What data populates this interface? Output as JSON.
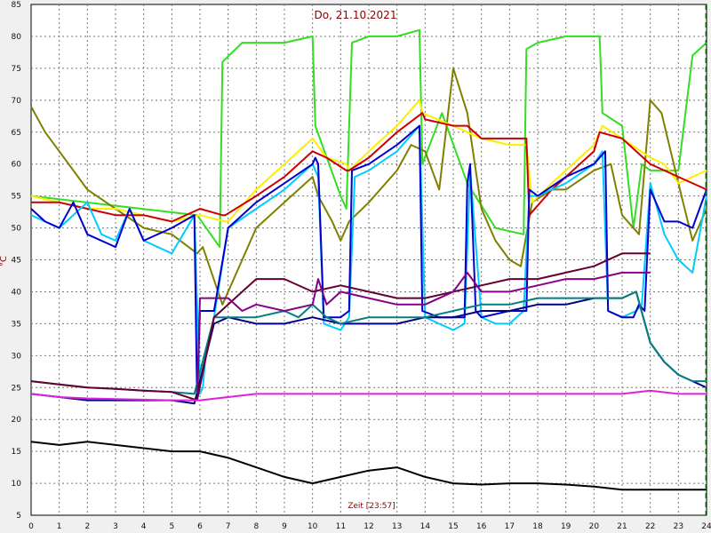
{
  "chart_data": {
    "type": "line",
    "title": "Do, 21.10.2021",
    "xlabel": "Zeit [23:57]",
    "ylabel": "°C",
    "xlim": [
      0,
      24
    ],
    "ylim": [
      5,
      85
    ],
    "x_ticks": [
      0,
      1,
      2,
      3,
      4,
      5,
      6,
      7,
      8,
      9,
      10,
      11,
      12,
      13,
      14,
      15,
      16,
      17,
      18,
      19,
      20,
      21,
      22,
      23,
      24
    ],
    "y_ticks": [
      5,
      10,
      15,
      20,
      25,
      30,
      35,
      40,
      45,
      50,
      55,
      60,
      65,
      70,
      75,
      80,
      85
    ],
    "grid": true,
    "series": [
      {
        "color": "#33dd22",
        "x": [
          0,
          5.9,
          6.7,
          6.8,
          7.5,
          9.0,
          10.0,
          10.1,
          11.0,
          11.2,
          11.4,
          12.0,
          13.0,
          13.8,
          13.9,
          14.6,
          15.5,
          16.5,
          17.5,
          17.6,
          18.0,
          19.0,
          20.2,
          20.3,
          21.0,
          21.4,
          21.7,
          22.0,
          23.0,
          23.5,
          24.0
        ],
        "values": [
          55,
          52,
          47,
          76,
          79,
          79,
          80,
          66,
          55,
          53,
          79,
          80,
          80,
          81,
          60,
          68,
          57,
          50,
          49,
          78,
          79,
          80,
          80,
          68,
          66,
          50,
          60,
          59,
          59,
          77,
          79
        ]
      },
      {
        "color": "#808000",
        "x": [
          0,
          0.5,
          1,
          2,
          3,
          4,
          5,
          5.9,
          6.1,
          6.8,
          7.0,
          8.0,
          9.0,
          10.0,
          10.2,
          10.7,
          11.0,
          11.3,
          12.0,
          13.0,
          13.5,
          14.0,
          14.5,
          15.0,
          15.5,
          16.0,
          16.5,
          17.0,
          17.4,
          17.8,
          18.5,
          19.0,
          20.0,
          20.6,
          21.0,
          21.6,
          22.0,
          22.4,
          23.0,
          23.5,
          24.0
        ],
        "values": [
          69,
          65,
          62,
          56,
          53,
          50,
          49,
          46,
          47,
          38,
          40,
          50,
          54,
          58,
          55,
          51,
          48,
          51,
          54,
          59,
          63,
          62,
          56,
          75,
          68,
          53,
          48,
          45,
          44,
          54,
          56,
          56,
          59,
          60,
          52,
          49,
          70,
          68,
          57,
          48,
          53
        ]
      },
      {
        "color": "#ffee00",
        "x": [
          0,
          1,
          2,
          3,
          4,
          5,
          6,
          6.9,
          7.0,
          8,
          9,
          10,
          10.5,
          11.2,
          11.3,
          12,
          13,
          13.8,
          13.9,
          15,
          15.5,
          16,
          17,
          17.6,
          17.8,
          18.5,
          19,
          20,
          20.3,
          21,
          22,
          22.5,
          23,
          24
        ],
        "values": [
          55,
          54,
          53,
          53,
          52,
          51,
          52,
          51,
          51,
          56,
          60,
          64,
          61,
          60,
          59,
          62,
          66,
          70,
          68,
          66,
          65,
          64,
          63,
          63,
          54,
          57,
          59,
          63,
          66,
          64,
          61,
          60,
          57,
          59
        ]
      },
      {
        "color": "#cc0000",
        "x": [
          0,
          1,
          2,
          3,
          4,
          5,
          6,
          6.8,
          6.9,
          8,
          9,
          10,
          10.5,
          11.2,
          11.3,
          12,
          13,
          13.9,
          14,
          15,
          15.5,
          16,
          17,
          17.6,
          17.7,
          18.5,
          19,
          20,
          20.2,
          21,
          22,
          22.5,
          23,
          24
        ],
        "values": [
          54,
          54,
          53,
          52,
          52,
          51,
          53,
          52,
          52,
          55,
          58,
          62,
          61,
          59,
          59,
          61,
          65,
          68,
          67,
          66,
          66,
          64,
          64,
          64,
          52,
          56,
          58,
          62,
          65,
          64,
          60,
          59,
          58,
          56
        ]
      },
      {
        "color": "#00ccff",
        "x": [
          0,
          0.5,
          1,
          2,
          2.5,
          3,
          3.5,
          4,
          5,
          5.8,
          6.0,
          6.1,
          6.2,
          6.5,
          7,
          8,
          9,
          10,
          10.2,
          10.4,
          11.0,
          11.3,
          11.5,
          12,
          13,
          13.8,
          14.0,
          14.5,
          15.0,
          15.4,
          15.6,
          16,
          16.5,
          17,
          17.5,
          17.7,
          18,
          18.5,
          19,
          20,
          20.3,
          20.5,
          21,
          21.5,
          21.7,
          22,
          22.5,
          23,
          23.5,
          24
        ],
        "values": [
          52,
          51,
          50,
          54,
          49,
          48,
          53,
          48,
          46,
          52,
          24,
          25,
          30,
          36,
          50,
          53,
          56,
          60,
          58,
          35,
          34,
          36,
          58,
          59,
          62,
          66,
          36,
          35,
          34,
          35,
          59,
          36,
          35,
          35,
          37,
          55,
          55,
          56,
          57,
          60,
          62,
          37,
          36,
          37,
          38,
          57,
          49,
          45,
          43,
          55
        ]
      },
      {
        "color": "#0000cc",
        "x": [
          0,
          0.5,
          1,
          1.5,
          2,
          3,
          3.5,
          4,
          5,
          5.8,
          5.9,
          6.0,
          6.5,
          7,
          8,
          9,
          10,
          10.1,
          10.2,
          10.4,
          11.0,
          11.3,
          11.4,
          12,
          13,
          13.8,
          13.9,
          14.5,
          15.4,
          15.5,
          15.6,
          15.8,
          16,
          17,
          17.6,
          17.7,
          18,
          19,
          20,
          20.4,
          20.5,
          21,
          21.4,
          21.6,
          21.8,
          22,
          22.3,
          22.5,
          23,
          23.5,
          24
        ],
        "values": [
          53,
          51,
          50,
          54,
          49,
          47,
          53,
          48,
          50,
          52,
          23,
          37,
          37,
          50,
          54,
          57,
          60,
          61,
          60,
          36,
          36,
          37,
          59,
          60,
          63,
          66,
          37,
          36,
          36,
          57,
          60,
          37,
          36,
          37,
          37,
          56,
          55,
          58,
          60,
          62,
          37,
          36,
          36,
          38,
          37,
          56,
          53,
          51,
          51,
          50,
          56
        ]
      },
      {
        "color": "#000080",
        "x": [
          0,
          1,
          2,
          3,
          4,
          5,
          5.8,
          6.5,
          7,
          8,
          9,
          10,
          11,
          12,
          13,
          14,
          15,
          16,
          17,
          18,
          19,
          20,
          21,
          21.5,
          22,
          22.5,
          23,
          23.5,
          24
        ],
        "values": [
          24,
          23.5,
          23,
          23,
          23,
          23,
          22.5,
          35,
          36,
          35,
          35,
          36,
          35,
          35,
          35,
          36,
          36,
          37,
          37,
          38,
          38,
          39,
          39,
          40,
          32,
          29,
          27,
          26,
          25
        ]
      },
      {
        "color": "#008080",
        "x": [
          0,
          1,
          2,
          3,
          4,
          5,
          5.8,
          6.5,
          7,
          8,
          9,
          9.5,
          10,
          10.5,
          11,
          12,
          13,
          14,
          15,
          16,
          17,
          18,
          19,
          20,
          21,
          21.5,
          22,
          22.5,
          23,
          23.5,
          24
        ],
        "values": [
          26,
          25.5,
          25,
          24.8,
          24.5,
          24.3,
          24,
          36,
          36,
          36,
          37,
          36,
          38,
          36,
          35,
          36,
          36,
          36,
          37,
          38,
          38,
          39,
          39,
          39,
          39,
          40,
          32,
          29,
          27,
          26,
          26
        ]
      },
      {
        "color": "#660033",
        "x": [
          0,
          1,
          2,
          3,
          4,
          5,
          5.9,
          6.5,
          7,
          7.5,
          8,
          9,
          10,
          11,
          12,
          13,
          14,
          15,
          16,
          17,
          18,
          19,
          20,
          21,
          22
        ],
        "values": [
          26,
          25.5,
          25,
          24.8,
          24.5,
          24.3,
          23,
          36,
          38,
          40,
          42,
          42,
          40,
          41,
          40,
          39,
          39,
          40,
          41,
          42,
          42,
          43,
          44,
          46,
          46
        ]
      },
      {
        "color": "#880088",
        "x": [
          5.9,
          6.0,
          6.2,
          6.9,
          7.0,
          7.5,
          8,
          9,
          10,
          10.2,
          10.5,
          11,
          12,
          13,
          14,
          15,
          15.5,
          16,
          17,
          18,
          19,
          20,
          21,
          21.5,
          22
        ],
        "values": [
          24,
          39,
          39,
          39,
          39,
          37,
          38,
          37,
          38,
          42,
          38,
          40,
          39,
          38,
          38,
          40,
          43,
          40,
          40,
          41,
          42,
          42,
          43,
          43,
          43
        ]
      },
      {
        "color": "#dd22dd",
        "x": [
          0,
          1,
          2,
          3,
          4,
          5,
          6,
          7,
          8,
          9,
          10,
          11,
          12,
          13,
          14,
          15,
          16,
          17,
          18,
          19,
          20,
          21,
          22,
          23,
          24
        ],
        "values": [
          24,
          23.5,
          23.3,
          23.2,
          23.1,
          23.0,
          23,
          23.5,
          24,
          24,
          24,
          24,
          24,
          24,
          24,
          24,
          24,
          24,
          24,
          24,
          24,
          24,
          24.5,
          24,
          24
        ]
      },
      {
        "color": "#000000",
        "x": [
          0,
          1,
          2,
          3,
          4,
          5,
          6,
          7,
          8,
          9,
          10,
          11,
          12,
          13,
          14,
          15,
          16,
          17,
          18,
          19,
          20,
          21,
          22,
          23,
          24
        ],
        "values": [
          16.5,
          16,
          16.5,
          16,
          15.5,
          15,
          15,
          14,
          12.5,
          11,
          10,
          11,
          12,
          12.5,
          11,
          10,
          9.8,
          10,
          10,
          9.8,
          9.5,
          9,
          9,
          9,
          9
        ]
      }
    ]
  }
}
